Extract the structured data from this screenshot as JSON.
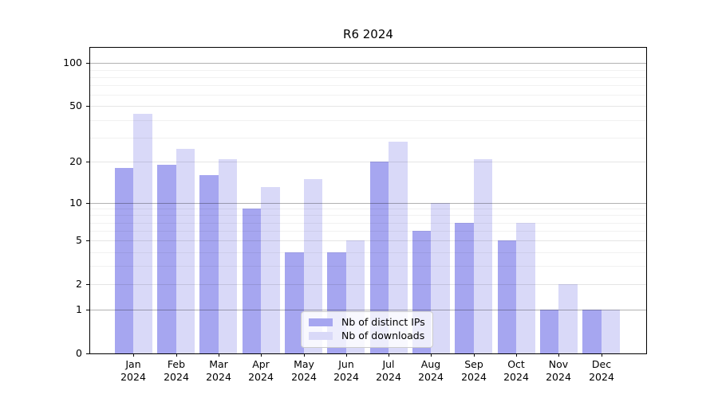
{
  "window": {
    "background": "#ffffff"
  },
  "chart_data": {
    "type": "bar",
    "title": "R6 2024",
    "categories": [
      "Jan 2024",
      "Feb 2024",
      "Mar 2024",
      "Apr 2024",
      "May 2024",
      "Jun 2024",
      "Jul 2024",
      "Aug 2024",
      "Sep 2024",
      "Oct 2024",
      "Nov 2024",
      "Dec 2024"
    ],
    "series": [
      {
        "name": "Nb of distinct IPs",
        "color": "#a6a6f0",
        "values": [
          18,
          19,
          16,
          9,
          4,
          4,
          20,
          6,
          7,
          5,
          1,
          1
        ]
      },
      {
        "name": "Nb of downloads",
        "color": "#d9d9f8",
        "values": [
          44,
          25,
          21,
          13,
          15,
          5,
          28,
          10,
          21,
          7,
          2,
          1
        ]
      }
    ],
    "yscale": "log1p",
    "ylim": [
      0,
      128
    ],
    "yticks": [
      0,
      1,
      2,
      5,
      10,
      20,
      50,
      100
    ],
    "ytick_labels": [
      "0",
      "1",
      "2",
      "5",
      "10",
      "20",
      "50",
      "100"
    ],
    "gridlines": {
      "major": [
        1,
        10,
        100
      ],
      "mid": [
        2,
        5,
        20,
        50
      ],
      "minor": [
        3,
        4,
        6,
        7,
        8,
        9,
        30,
        40,
        60,
        70,
        80,
        90
      ]
    },
    "grid": true,
    "legend_position": "lower center",
    "xlabel": "",
    "ylabel": ""
  }
}
